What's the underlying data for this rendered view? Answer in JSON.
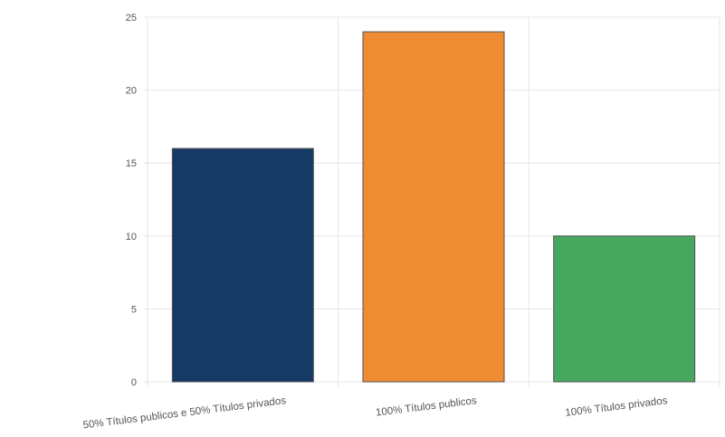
{
  "chart_data": {
    "type": "bar",
    "categories": [
      "50% Títulos publicos e 50% Títulos privados",
      "100% Títulos publicos",
      "100% Títulos privados"
    ],
    "values": [
      16,
      24,
      10
    ],
    "colors": [
      "#153a66",
      "#ee8b33",
      "#46a85f"
    ],
    "yticks": [
      "0",
      "5",
      "10",
      "15",
      "20",
      "25"
    ],
    "ylim": [
      0,
      25
    ],
    "grid": true,
    "title": "",
    "xlabel": "",
    "ylabel": ""
  }
}
